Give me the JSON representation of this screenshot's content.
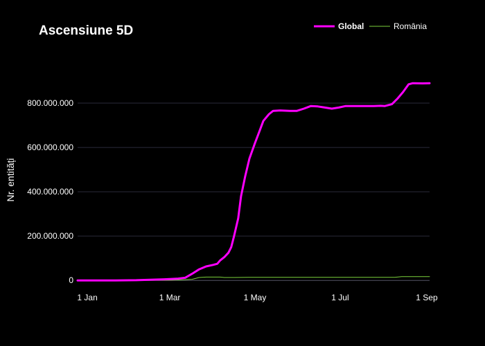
{
  "chart_data": {
    "type": "line",
    "title": "Ascensiune 5D",
    "ylabel": "Nr. entități",
    "xlabel": "",
    "x_ticks": [
      {
        "label": "1 Jan",
        "day": 0
      },
      {
        "label": "1 Mar",
        "day": 59
      },
      {
        "label": "1 May",
        "day": 120
      },
      {
        "label": "1 Jul",
        "day": 181
      },
      {
        "label": "1 Sep",
        "day": 243
      }
    ],
    "y_ticks": [
      {
        "label": "0",
        "value": 0
      },
      {
        "label": "200.000.000",
        "value": 200000000
      },
      {
        "label": "400.000.000",
        "value": 400000000
      },
      {
        "label": "600.000.000",
        "value": 600000000
      },
      {
        "label": "800.000.000",
        "value": 800000000
      }
    ],
    "xlim": [
      -7,
      245
    ],
    "ylim": [
      -15000000,
      1000000000
    ],
    "grid": true,
    "legend_position": "top-right",
    "series": [
      {
        "name": "Global",
        "color": "#ff00ff",
        "bold_legend": true,
        "points": [
          [
            -7,
            0
          ],
          [
            20,
            0
          ],
          [
            35,
            1000000
          ],
          [
            45,
            3000000
          ],
          [
            55,
            5000000
          ],
          [
            65,
            8000000
          ],
          [
            70,
            12000000
          ],
          [
            75,
            30000000
          ],
          [
            80,
            50000000
          ],
          [
            85,
            63000000
          ],
          [
            90,
            70000000
          ],
          [
            93,
            75000000
          ],
          [
            95,
            90000000
          ],
          [
            98,
            105000000
          ],
          [
            101,
            125000000
          ],
          [
            103,
            150000000
          ],
          [
            105,
            200000000
          ],
          [
            108,
            280000000
          ],
          [
            110,
            380000000
          ],
          [
            113,
            470000000
          ],
          [
            116,
            550000000
          ],
          [
            120,
            620000000
          ],
          [
            123,
            670000000
          ],
          [
            126,
            720000000
          ],
          [
            130,
            750000000
          ],
          [
            133,
            765000000
          ],
          [
            138,
            767000000
          ],
          [
            145,
            765000000
          ],
          [
            150,
            765000000
          ],
          [
            155,
            775000000
          ],
          [
            160,
            787000000
          ],
          [
            165,
            785000000
          ],
          [
            170,
            780000000
          ],
          [
            175,
            775000000
          ],
          [
            180,
            780000000
          ],
          [
            185,
            787000000
          ],
          [
            195,
            787000000
          ],
          [
            205,
            787000000
          ],
          [
            210,
            788000000
          ],
          [
            213,
            787000000
          ],
          [
            218,
            795000000
          ],
          [
            222,
            820000000
          ],
          [
            226,
            850000000
          ],
          [
            230,
            885000000
          ],
          [
            233,
            890000000
          ],
          [
            240,
            889000000
          ],
          [
            245,
            890000000
          ]
        ]
      },
      {
        "name": "România",
        "color": "#7cd23c",
        "bold_legend": false,
        "points": [
          [
            -7,
            0
          ],
          [
            40,
            0
          ],
          [
            60,
            1000000
          ],
          [
            75,
            5000000
          ],
          [
            80,
            13000000
          ],
          [
            85,
            15000000
          ],
          [
            95,
            15000000
          ],
          [
            98,
            13000000
          ],
          [
            105,
            13000000
          ],
          [
            115,
            14000000
          ],
          [
            125,
            14000000
          ],
          [
            150,
            14000000
          ],
          [
            180,
            14000000
          ],
          [
            210,
            14000000
          ],
          [
            220,
            14000000
          ],
          [
            225,
            17000000
          ],
          [
            245,
            17000000
          ]
        ]
      }
    ]
  }
}
